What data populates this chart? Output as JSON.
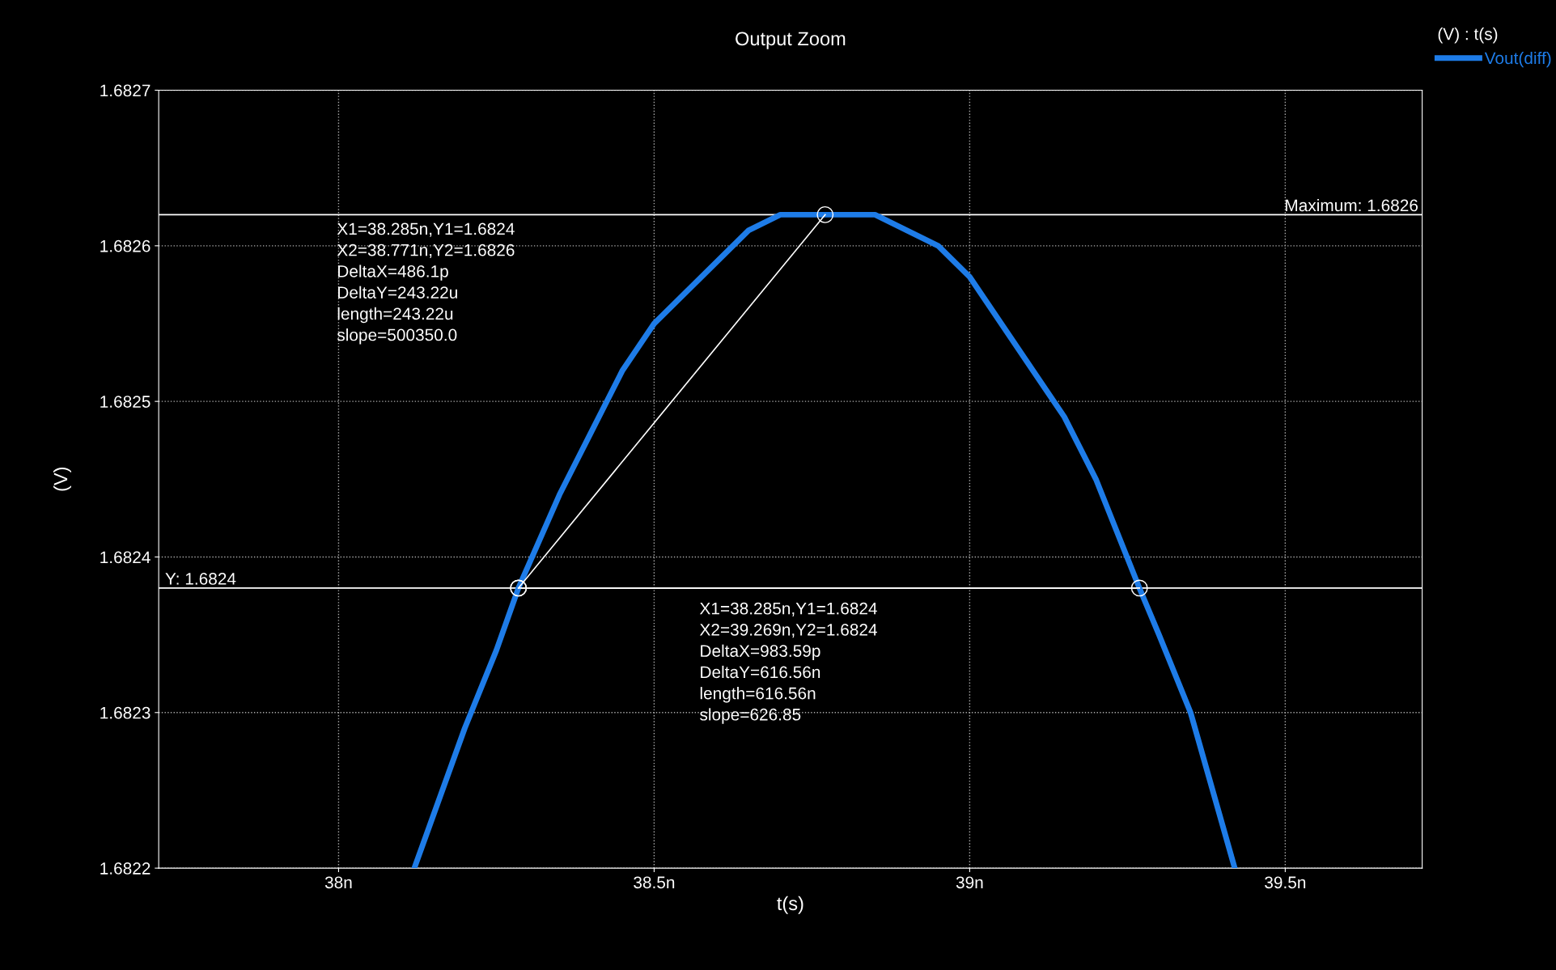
{
  "chart_data": {
    "type": "line",
    "title": "Output Zoom",
    "xlabel": "t(s)",
    "ylabel": "(V)",
    "legend_title": "(V) : t(s)",
    "legend": "right",
    "grid": true,
    "xlim": [
      37.715,
      39.717
    ],
    "ylim": [
      1.6822,
      1.6827
    ],
    "xticks": [
      {
        "value": 38,
        "label": "38n"
      },
      {
        "value": 38.5,
        "label": "38.5n"
      },
      {
        "value": 39,
        "label": "39n"
      },
      {
        "value": 39.5,
        "label": "39.5n"
      }
    ],
    "yticks": [
      1.6822,
      1.6823,
      1.6824,
      1.6825,
      1.6826,
      1.6827
    ],
    "series": [
      {
        "name": "Vout(diff)",
        "color": "#1e7ce8",
        "x": [
          38.12,
          38.2,
          38.25,
          38.285,
          38.35,
          38.4,
          38.45,
          38.5,
          38.55,
          38.6,
          38.65,
          38.7,
          38.78,
          38.85,
          38.9,
          38.95,
          39.0,
          39.05,
          39.1,
          39.15,
          39.2,
          39.269,
          39.3,
          39.35,
          39.42
        ],
        "values": [
          1.6822,
          1.68229,
          1.68234,
          1.68238,
          1.68244,
          1.68248,
          1.68252,
          1.68255,
          1.68257,
          1.68259,
          1.68261,
          1.68262,
          1.68262,
          1.68262,
          1.68261,
          1.6826,
          1.68258,
          1.68255,
          1.68252,
          1.68249,
          1.68245,
          1.68238,
          1.68235,
          1.6823,
          1.6822
        ]
      },
      {
        "color": "#ffffff",
        "marker": "circle",
        "x": [
          38.285,
          38.771
        ],
        "values": [
          1.68238,
          1.68262
        ]
      },
      {
        "color": "#ffffff",
        "marker": "circle",
        "x": [
          38.285,
          39.269
        ],
        "values": [
          1.68238,
          1.68238
        ]
      }
    ],
    "ref_lines": [
      {
        "axis": "y",
        "value": 1.68262,
        "label": "Maximum: 1.6826",
        "color": "#ffffff"
      },
      {
        "axis": "y",
        "value": 1.68238,
        "label": "Y: 1.6824",
        "color": "#ffffff"
      }
    ],
    "annotations": [
      "X1=38.285n,Y1=1.6824\nX2=38.771n,Y2=1.6826\nDeltaX=486.1p\nDeltaY=243.22u\nlength=243.22u\nslope=500350.0",
      "X1=38.285n,Y1=1.6824\nX2=39.269n,Y2=1.6824\nDeltaX=983.59p\nDeltaY=616.56n\nlength=616.56n\nslope=626.85"
    ]
  }
}
